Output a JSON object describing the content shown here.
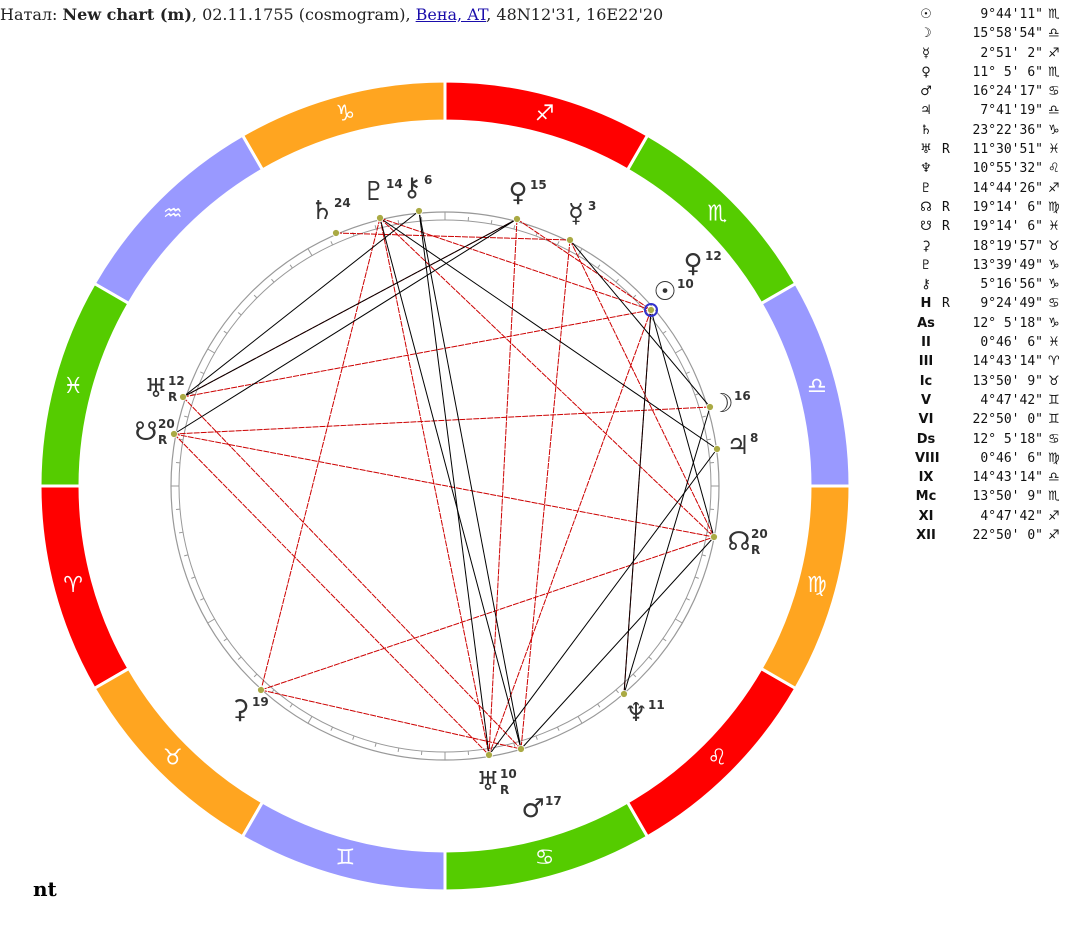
{
  "header": {
    "prefix": "Натал: ",
    "name": "New chart (m)",
    "details": ", 02.11.1755 (cosmogram), ",
    "place": "Вена, AT",
    "coords": ", 48N12'31, 16E22'20"
  },
  "zodiac": [
    "♈",
    "♉",
    "♊",
    "♋",
    "♌",
    "♍",
    "♎",
    "♏",
    "♐",
    "♑",
    "♒",
    "♓"
  ],
  "wheel_planets": [
    {
      "glyph": "♄",
      "degree": "24"
    },
    {
      "glyph": "♇",
      "degree": "14"
    },
    {
      "glyph": "⚷",
      "degree": "6"
    },
    {
      "glyph": "♀",
      "degree": "15"
    },
    {
      "glyph": "☿",
      "degree": "3"
    },
    {
      "glyph": "♀",
      "degree": "12"
    },
    {
      "glyph": "☉",
      "degree": "10"
    },
    {
      "glyph": "☽",
      "degree": "16"
    },
    {
      "glyph": "♃",
      "degree": "8"
    },
    {
      "glyph": "☊",
      "degree": "20",
      "retro": "R"
    },
    {
      "glyph": "♆",
      "degree": "11"
    },
    {
      "glyph": "♅",
      "degree": "10",
      "retro": "R"
    },
    {
      "glyph": "♂",
      "degree": "17"
    },
    {
      "glyph": "⚳",
      "degree": "19"
    },
    {
      "glyph": "♅",
      "degree": "12",
      "retro": "R"
    },
    {
      "glyph": "☋",
      "degree": "20",
      "retro": "R"
    }
  ],
  "positions": [
    {
      "symbol": "☉",
      "position": "9°44'11\"",
      "sign": "♏"
    },
    {
      "symbol": "☽",
      "position": "15°58'54\"",
      "sign": "♎"
    },
    {
      "symbol": "☿",
      "position": "2°51' 2\"",
      "sign": "♐"
    },
    {
      "symbol": "♀",
      "position": "11° 5' 6\"",
      "sign": "♏"
    },
    {
      "symbol": "♂",
      "position": "16°24'17\"",
      "sign": "♋"
    },
    {
      "symbol": "♃",
      "position": "7°41'19\"",
      "sign": "♎"
    },
    {
      "symbol": "♄",
      "position": "23°22'36\"",
      "sign": "♑"
    },
    {
      "symbol": "♅",
      "retro": "R",
      "position": "11°30'51\"",
      "sign": "♓"
    },
    {
      "symbol": "♆",
      "position": "10°55'32\"",
      "sign": "♌"
    },
    {
      "symbol": "♇",
      "position": "14°44'26\"",
      "sign": "♐"
    },
    {
      "symbol": "☊",
      "retro": "R",
      "position": "19°14' 6\"",
      "sign": "♍"
    },
    {
      "symbol": "☋",
      "retro": "R",
      "position": "19°14' 6\"",
      "sign": "♓"
    },
    {
      "symbol": "⚳",
      "position": "18°19'57\"",
      "sign": "♉"
    },
    {
      "symbol": "♇",
      "position": "13°39'49\"",
      "sign": "♑"
    },
    {
      "symbol": "⚷",
      "position": "5°16'56\"",
      "sign": "♑"
    },
    {
      "symbol": "H",
      "retro": "R",
      "position": "9°24'49\"",
      "sign": "♋"
    },
    {
      "symbol": "As",
      "position": "12° 5'18\"",
      "sign": "♑"
    },
    {
      "symbol": "II",
      "position": "0°46' 6\"",
      "sign": "♓"
    },
    {
      "symbol": "III",
      "position": "14°43'14\"",
      "sign": "♈"
    },
    {
      "symbol": "Ic",
      "position": "13°50' 9\"",
      "sign": "♉"
    },
    {
      "symbol": "V",
      "position": "4°47'42\"",
      "sign": "♊"
    },
    {
      "symbol": "VI",
      "position": "22°50' 0\"",
      "sign": "♊"
    },
    {
      "symbol": "Ds",
      "position": "12° 5'18\"",
      "sign": "♋"
    },
    {
      "symbol": "VIII",
      "position": "0°46' 6\"",
      "sign": "♍"
    },
    {
      "symbol": "IX",
      "position": "14°43'14\"",
      "sign": "♎"
    },
    {
      "symbol": "Mc",
      "position": "13°50' 9\"",
      "sign": "♏"
    },
    {
      "symbol": "XI",
      "position": "4°47'42\"",
      "sign": "♐"
    },
    {
      "symbol": "XII",
      "position": "22°50' 0\"",
      "sign": "♐"
    }
  ],
  "footer": "nt"
}
